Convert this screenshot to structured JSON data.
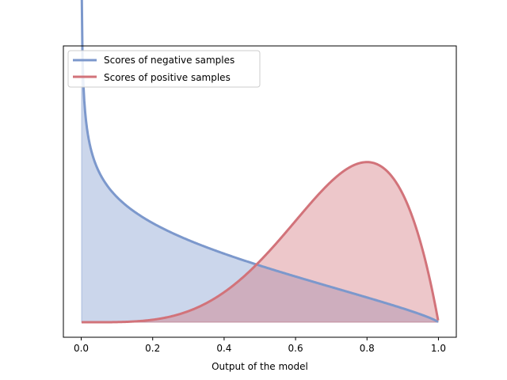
{
  "chart_data": {
    "type": "area",
    "xlabel": "Output of the model",
    "ylabel": "",
    "xlim": [
      -0.05,
      1.05
    ],
    "ylim": [
      -0.23,
      4.24
    ],
    "y_ticks_shown": false,
    "x_ticks": [
      "0.0",
      "0.2",
      "0.4",
      "0.6",
      "0.8",
      "1.0"
    ],
    "x_tick_values": [
      0.0,
      0.2,
      0.4,
      0.6,
      0.8,
      1.0
    ],
    "legend_position": "top-left",
    "grid": false,
    "series": [
      {
        "name": "Scores of negative samples",
        "color": "#7c98cc",
        "fill": "#c8d3e8",
        "distribution": "Beta",
        "alpha": 0.8,
        "beta": 1.8
      },
      {
        "name": "Scores of positive samples",
        "color": "#d2737a",
        "fill": "#eec5c7",
        "distribution": "Beta",
        "alpha": 5.0,
        "beta": 2.0
      }
    ]
  }
}
